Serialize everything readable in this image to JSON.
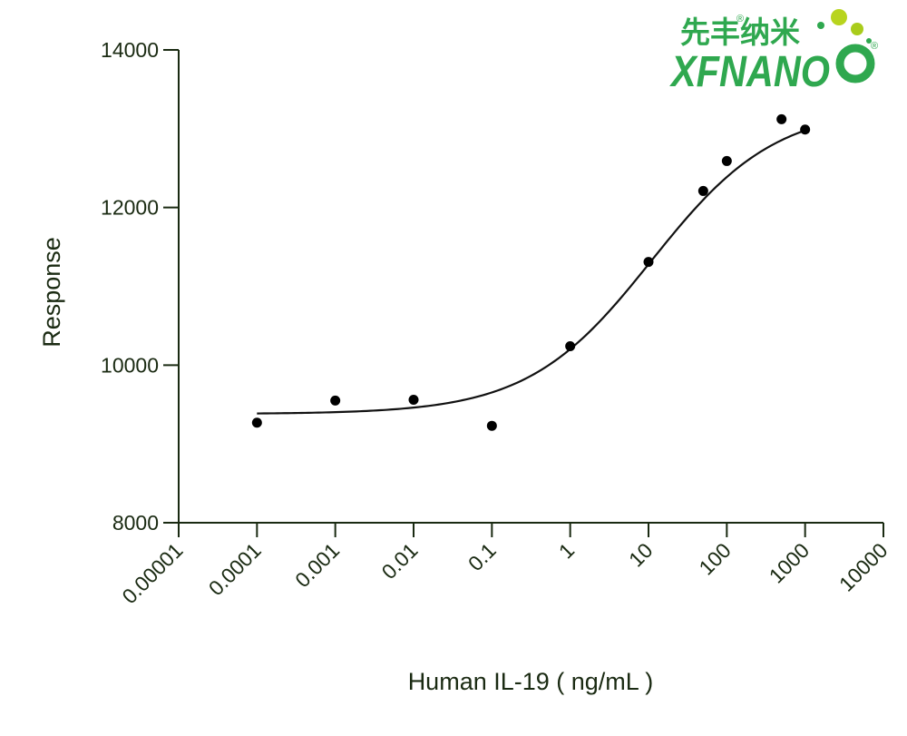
{
  "logo": {
    "chinese": "先丰纳米",
    "english": "XFNANO",
    "registered_mark": "®",
    "colors": {
      "green": "#2fa84f",
      "lime": "#b8d41e"
    }
  },
  "chart_data": {
    "type": "scatter",
    "xlabel": "Human IL-19 ( ng/mL )",
    "ylabel": "Response",
    "xscale": "log",
    "xlim": [
      1e-05,
      10000
    ],
    "ylim": [
      8000,
      14000
    ],
    "x_ticks": [
      {
        "value": 1e-05,
        "label": "0.00001"
      },
      {
        "value": 0.0001,
        "label": "0.0001"
      },
      {
        "value": 0.001,
        "label": "0.001"
      },
      {
        "value": 0.01,
        "label": "0.01"
      },
      {
        "value": 0.1,
        "label": "0.1"
      },
      {
        "value": 1,
        "label": "1"
      },
      {
        "value": 10,
        "label": "10"
      },
      {
        "value": 100,
        "label": "100"
      },
      {
        "value": 1000,
        "label": "1000"
      },
      {
        "value": 10000,
        "label": "10000"
      }
    ],
    "y_ticks": [
      {
        "value": 8000,
        "label": "8000"
      },
      {
        "value": 10000,
        "label": "10000"
      },
      {
        "value": 12000,
        "label": "12000"
      },
      {
        "value": 14000,
        "label": "14000"
      }
    ],
    "points": [
      {
        "x": 0.0001,
        "y": 9270
      },
      {
        "x": 0.001,
        "y": 9550
      },
      {
        "x": 0.01,
        "y": 9560
      },
      {
        "x": 0.1,
        "y": 9230
      },
      {
        "x": 1,
        "y": 10240
      },
      {
        "x": 10,
        "y": 11310
      },
      {
        "x": 50,
        "y": 12210
      },
      {
        "x": 100,
        "y": 12590
      },
      {
        "x": 500,
        "y": 13120
      },
      {
        "x": 1000,
        "y": 12990
      }
    ],
    "fit_curve": {
      "type": "4PL",
      "bottom": 9380,
      "top": 13280,
      "ec50": 11,
      "hill": 0.55,
      "x_range": [
        0.0001,
        1000
      ]
    },
    "grid": false,
    "colors": {
      "axis": "#1a2a12",
      "text": "#1a2a12",
      "points": "#000000",
      "curve": "#111111"
    }
  }
}
